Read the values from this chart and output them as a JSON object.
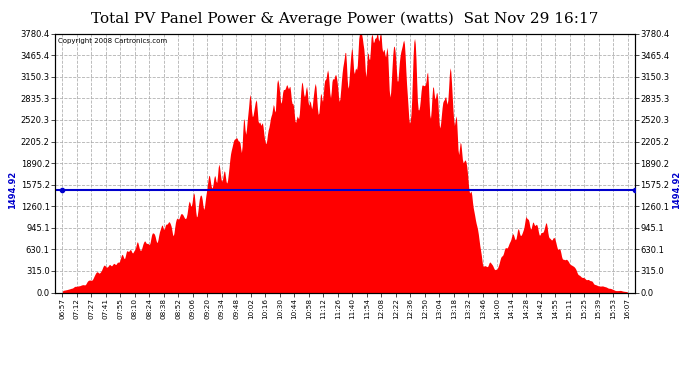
{
  "title": "Total PV Panel Power & Average Power (watts)  Sat Nov 29 16:17",
  "copyright": "Copyright 2008 Cartronics.com",
  "average_power": 1494.92,
  "y_max": 3780.4,
  "y_ticks": [
    0.0,
    315.0,
    630.1,
    945.1,
    1260.1,
    1575.2,
    1890.2,
    2205.2,
    2520.3,
    2835.3,
    3150.3,
    3465.4,
    3780.4
  ],
  "fill_color": "#FF0000",
  "avg_line_color": "#0000CC",
  "background_color": "#FFFFFF",
  "grid_color": "#AAAAAA",
  "title_fontsize": 11,
  "tick_labels": [
    "06:57",
    "07:12",
    "07:27",
    "07:41",
    "07:55",
    "08:10",
    "08:24",
    "08:38",
    "08:52",
    "09:06",
    "09:20",
    "09:34",
    "09:48",
    "10:02",
    "10:16",
    "10:30",
    "10:44",
    "10:58",
    "11:12",
    "11:26",
    "11:40",
    "11:54",
    "12:08",
    "12:22",
    "12:36",
    "12:50",
    "13:04",
    "13:18",
    "13:32",
    "13:46",
    "14:00",
    "14:14",
    "14:28",
    "14:42",
    "14:55",
    "15:11",
    "15:25",
    "15:39",
    "15:53",
    "16:07"
  ],
  "power_envelope": [
    30,
    80,
    200,
    350,
    500,
    650,
    750,
    900,
    1050,
    1300,
    1500,
    1800,
    2200,
    2550,
    2700,
    2800,
    2850,
    2900,
    3100,
    3200,
    3400,
    3780,
    3500,
    3200,
    3100,
    2900,
    2800,
    2750,
    1600,
    400,
    350,
    800,
    1050,
    950,
    700,
    400,
    200,
    100,
    50,
    10
  ]
}
